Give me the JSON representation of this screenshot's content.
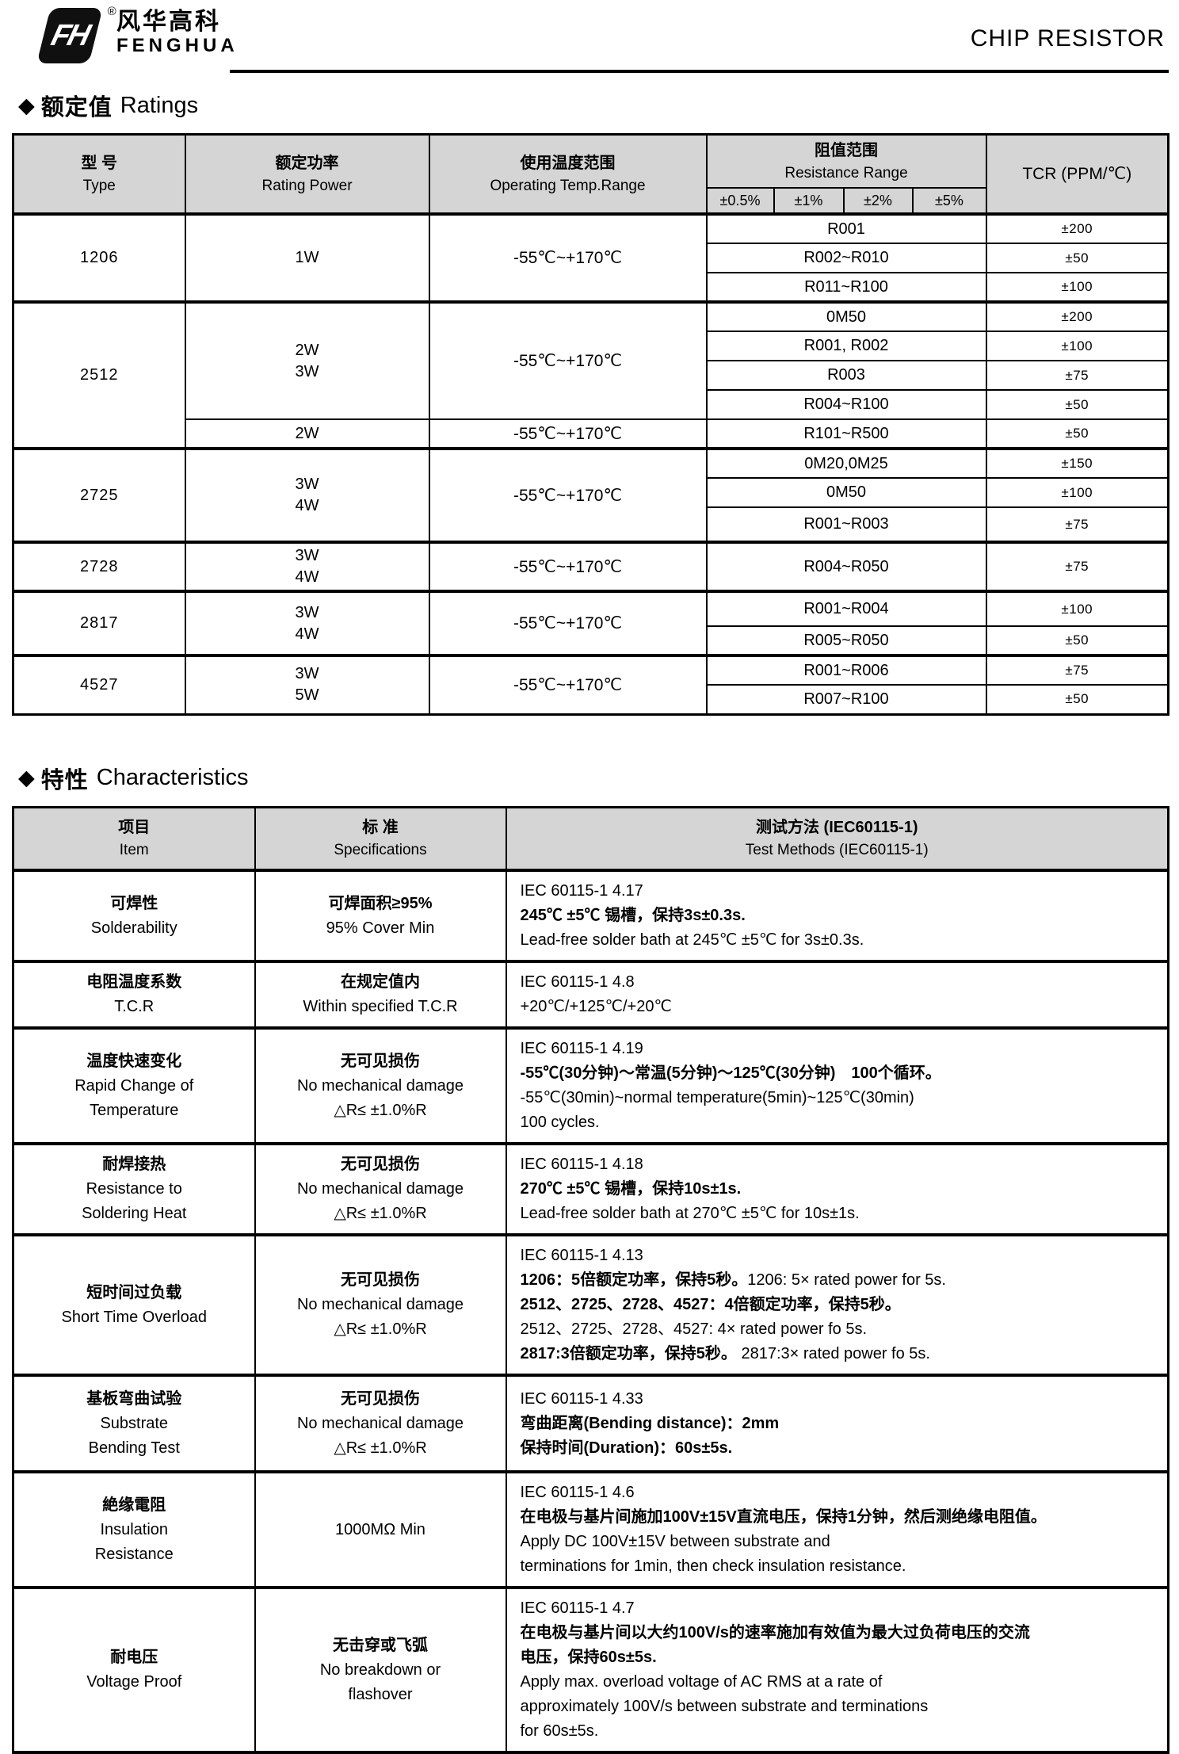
{
  "colors": {
    "header_bg": "#d5d5d5",
    "border": "#000000",
    "text": "#000000",
    "logo": "#101010"
  },
  "icons": {
    "section_marker": "◆",
    "registered_mark": "®",
    "logo_monogram": "FH"
  },
  "header": {
    "logo_cn": "风华高科",
    "logo_en": "FENGHUA",
    "doc_title": "CHIP RESISTOR"
  },
  "ratings": {
    "heading_cn": "额定值",
    "heading_en": "Ratings",
    "columns": {
      "type_cn": "型  号",
      "type_en": "Type",
      "power_cn": "额定功率",
      "power_en": "Rating Power",
      "temp_cn": "使用温度范围",
      "temp_en": "Operating Temp.Range",
      "range_cn": "阻值范围",
      "range_en": "Resistance Range",
      "tolerances": [
        "±0.5%",
        "±1%",
        "±2%",
        "±5%"
      ],
      "tcr": "TCR (PPM/℃)"
    },
    "rows": [
      {
        "type": "1206",
        "power_lines": [
          "1W"
        ],
        "temp": "-55℃~+170℃",
        "range": "R001",
        "tcr": "±200"
      },
      {
        "range": "R002~R010",
        "tcr": "±50"
      },
      {
        "range": "R011~R100",
        "tcr": "±100"
      },
      {
        "type": "2512",
        "power_lines": [
          "2W",
          "3W"
        ],
        "temp": "-55℃~+170℃",
        "range": "0M50",
        "tcr": "±200"
      },
      {
        "range": "R001, R002",
        "tcr": "±100"
      },
      {
        "range": "R003",
        "tcr": "±75"
      },
      {
        "range": "R004~R100",
        "tcr": "±50"
      },
      {
        "power_lines": [
          "2W"
        ],
        "temp": "-55℃~+170℃",
        "range": "R101~R500",
        "tcr": "±50"
      },
      {
        "type": "2725",
        "power_lines": [
          "3W",
          "4W"
        ],
        "temp": "-55℃~+170℃",
        "range": "0M20,0M25",
        "tcr": "±150"
      },
      {
        "range": "0M50",
        "tcr": "±100"
      },
      {
        "range": "R001~R003",
        "tcr": "±75"
      },
      {
        "type": "2728",
        "power_lines": [
          "3W",
          "4W"
        ],
        "temp": "-55℃~+170℃",
        "range": "R004~R050",
        "tcr": "±75"
      },
      {
        "type": "2817",
        "power_lines": [
          "3W",
          "4W"
        ],
        "temp": "-55℃~+170℃",
        "range": "R001~R004",
        "tcr": "±100"
      },
      {
        "range": "R005~R050",
        "tcr": "±50"
      },
      {
        "type": "4527",
        "power_lines": [
          "3W",
          "5W"
        ],
        "temp": "-55℃~+170℃",
        "range": "R001~R006",
        "tcr": "±75"
      },
      {
        "range": "R007~R100",
        "tcr": "±50"
      }
    ]
  },
  "characteristics": {
    "heading_cn": "特性",
    "heading_en": "Characteristics",
    "columns": {
      "item_cn": "项目",
      "item_en": "Item",
      "spec_cn": "标 准",
      "spec_en": "Specifications",
      "method_cn": "测试方法 (IEC60115-1)",
      "method_en": "Test Methods  (IEC60115-1)"
    },
    "rows": [
      {
        "item_lines": [
          {
            "t": "可焊性",
            "b": true
          },
          "Solderability"
        ],
        "spec_lines": [
          {
            "t": "可焊面积≥95%",
            "b": true
          },
          "95% Cover Min"
        ],
        "method_lines": [
          "IEC 60115-1 4.17",
          {
            "t": "245℃ ±5℃ 锡槽，保持3s±0.3s.",
            "b": true
          },
          "Lead-free solder bath at 245℃ ±5℃ for 3s±0.3s."
        ]
      },
      {
        "item_lines": [
          {
            "t": "电阻温度系数",
            "b": true
          },
          "T.C.R"
        ],
        "spec_lines": [
          {
            "t": "在规定值内",
            "b": true
          },
          "Within specified T.C.R"
        ],
        "method_lines": [
          "IEC 60115-1 4.8",
          "+20℃/+125℃/+20℃"
        ]
      },
      {
        "item_lines": [
          {
            "t": "温度快速变化",
            "b": true
          },
          "Rapid Change of",
          "Temperature"
        ],
        "spec_lines": [
          {
            "t": "无可见损伤",
            "b": true
          },
          "No mechanical damage",
          "△R≤ ±1.0%R"
        ],
        "method_lines": [
          "IEC 60115-1 4.19",
          {
            "t": "-55℃(30分钟)～常温(5分钟)～125℃(30分钟)　100个循环。",
            "b": true
          },
          "-55℃(30min)~normal temperature(5min)~125℃(30min)",
          " 100 cycles."
        ]
      },
      {
        "item_lines": [
          {
            "t": "耐焊接热",
            "b": true
          },
          "Resistance to",
          "Soldering Heat"
        ],
        "spec_lines": [
          {
            "t": "无可见损伤",
            "b": true
          },
          "No mechanical damage",
          "△R≤ ±1.0%R"
        ],
        "method_lines": [
          "IEC 60115-1 4.18",
          {
            "t": "270℃ ±5℃ 锡槽，保持10s±1s.",
            "b": true
          },
          "Lead-free solder bath at 270℃ ±5℃ for 10s±1s."
        ]
      },
      {
        "item_lines": [
          {
            "t": "短时间过负载",
            "b": true
          },
          "Short Time Overload"
        ],
        "spec_lines": [
          {
            "t": "无可见损伤",
            "b": true
          },
          "No mechanical damage",
          "△R≤ ±1.0%R"
        ],
        "method_lines": [
          "IEC 60115-1  4.13",
          {
            "seg": [
              {
                "t": "1206：5倍额定功率，保持5秒。",
                "b": true
              },
              {
                "t": "1206: 5× rated power for 5s."
              }
            ]
          },
          {
            "t": "2512、2725、2728、4527：4倍额定功率，保持5秒。",
            "b": true
          },
          "2512、2725、2728、4527:  4× rated power fo 5s.",
          {
            "seg": [
              {
                "t": "2817:3倍额定功率，保持5秒。",
                "b": true
              },
              {
                "t": " 2817:3× rated power fo 5s."
              }
            ]
          }
        ]
      },
      {
        "item_lines": [
          {
            "t": "基板弯曲试验",
            "b": true
          },
          "Substrate",
          "Bending Test"
        ],
        "spec_lines": [
          {
            "t": "无可见损伤",
            "b": true
          },
          "No mechanical damage",
          "△R≤ ±1.0%R"
        ],
        "method_lines": [
          "IEC 60115-1 4.33",
          {
            "t": "弯曲距离(Bending distance)：2mm",
            "b": true
          },
          {
            "t": "保持时间(Duration)：60s±5s.",
            "b": true
          }
        ]
      },
      {
        "item_lines": [
          {
            "t": "絶缘電阻",
            "b": true
          },
          "Insulation",
          "Resistance"
        ],
        "spec_lines": [
          "1000MΩ Min"
        ],
        "method_lines": [
          "IEC 60115-1 4.6",
          {
            "t": "在电极与基片间施加100V±15V直流电压，保持1分钟，然后测绝缘电阻值。",
            "b": true
          },
          "Apply DC 100V±15V between substrate and",
          "terminations  for 1min, then check insulation resistance."
        ]
      },
      {
        "item_lines": [
          {
            "t": "耐电压",
            "b": true
          },
          "Voltage Proof"
        ],
        "spec_lines": [
          {
            "t": "无击穿或飞弧",
            "b": true
          },
          "No breakdown or",
          "flashover"
        ],
        "method_lines": [
          "IEC 60115-1 4.7",
          {
            "t": "在电极与基片间以大约100V/s的速率施加有效值为最大过负荷电压的交流",
            "b": true
          },
          {
            "t": "电压，保持60s±5s.",
            "b": true
          },
          "Apply max. overload voltage of AC RMS at a rate of",
          "approximately 100V/s between substrate and terminations",
          "for 60s±5s."
        ]
      }
    ]
  }
}
